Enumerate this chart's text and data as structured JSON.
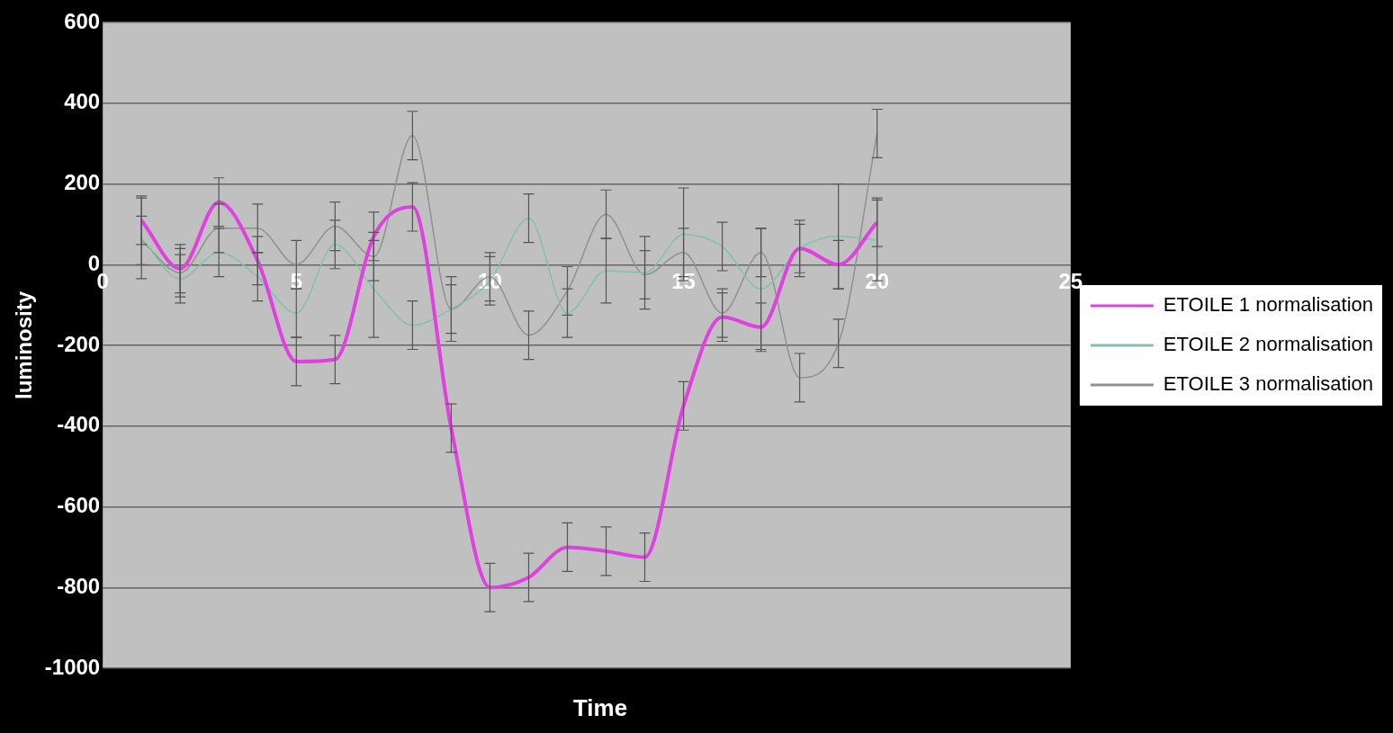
{
  "chart_data": {
    "type": "line",
    "xlabel": "Time",
    "ylabel": "luminosity",
    "x": [
      1,
      2,
      3,
      4,
      5,
      6,
      7,
      8,
      9,
      10,
      11,
      12,
      13,
      14,
      15,
      16,
      17,
      18,
      19,
      20
    ],
    "xlim": [
      0,
      25
    ],
    "xticks": [
      0,
      5,
      10,
      15,
      20,
      25
    ],
    "ylim": [
      -1000,
      600
    ],
    "yticks": [
      -1000,
      -800,
      -600,
      -400,
      -200,
      0,
      200,
      400,
      600
    ],
    "grid": "y",
    "legend": "right",
    "marker": "none",
    "line_style": "solid",
    "series": [
      {
        "name": "ETOILE 1 normalisation",
        "color": "#e040e0",
        "values": [
          110,
          -10,
          155,
          10,
          -240,
          -235,
          70,
          143,
          -405,
          -800,
          -775,
          -700,
          -710,
          -725,
          -350,
          -130,
          -155,
          40,
          0,
          105
        ],
        "errors": [
          60,
          60,
          60,
          60,
          60,
          60,
          60,
          60,
          60,
          60,
          60,
          60,
          60,
          60,
          60,
          60,
          60,
          60,
          60,
          60
        ]
      },
      {
        "name": "ETOILE 2 normalisation",
        "color": "#80c0b0",
        "values": [
          65,
          -35,
          30,
          -30,
          -120,
          50,
          -60,
          -150,
          -110,
          -40,
          115,
          -120,
          -15,
          -20,
          75,
          45,
          -60,
          40,
          70,
          60
        ],
        "errors": [
          100,
          60,
          60,
          60,
          60,
          60,
          120,
          60,
          80,
          60,
          60,
          60,
          80,
          90,
          115,
          60,
          150,
          70,
          130,
          100
        ]
      },
      {
        "name": "ETOILE 3 normalisation",
        "color": "#909090",
        "values": [
          60,
          -20,
          90,
          90,
          0,
          95,
          20,
          320,
          -110,
          -30,
          -175,
          -65,
          125,
          -25,
          30,
          -120,
          30,
          -280,
          -195,
          325
        ],
        "errors": [
          60,
          60,
          60,
          60,
          60,
          60,
          60,
          60,
          60,
          60,
          60,
          60,
          60,
          60,
          60,
          60,
          60,
          60,
          60,
          60
        ]
      }
    ]
  }
}
